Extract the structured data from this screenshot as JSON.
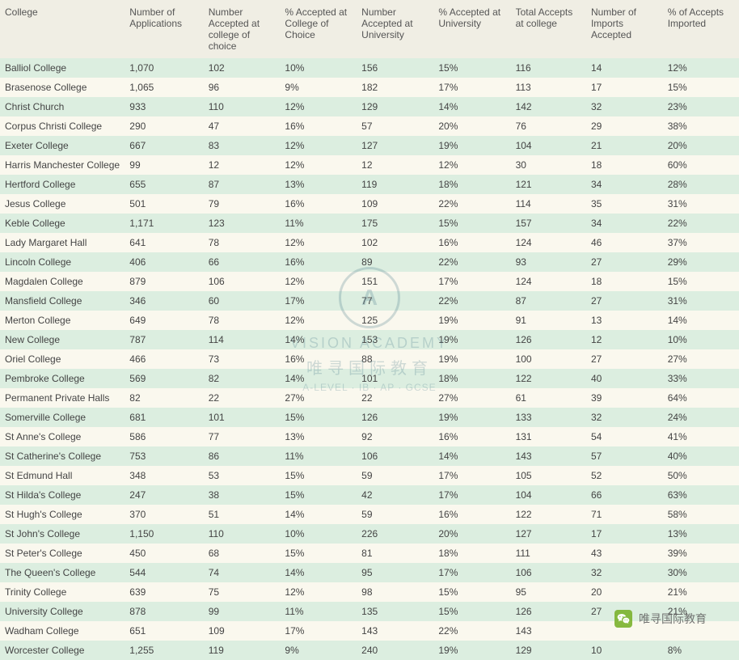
{
  "table": {
    "columns": [
      "College",
      "Number of Applications",
      "Number Accepted at college of choice",
      "% Accepted at College of Choice",
      "Number Accepted at University",
      "% Accepted at University",
      "Total Accepts at college",
      "Number of Imports Accepted",
      "% of Accepts Imported"
    ],
    "column_widths": [
      "160px",
      "90px",
      "90px",
      "90px",
      "90px",
      "90px",
      "90px",
      "90px",
      "90px"
    ],
    "row_odd_bg": "#dceee0",
    "row_even_bg": "#faf8ee",
    "header_bg": "#f0eee4",
    "font_size": 12,
    "text_color": "#444",
    "rows": [
      [
        "Balliol College",
        "1,070",
        "102",
        "10%",
        "156",
        "15%",
        "116",
        "14",
        "12%"
      ],
      [
        "Brasenose College",
        "1,065",
        "96",
        "9%",
        "182",
        "17%",
        "113",
        "17",
        "15%"
      ],
      [
        "Christ Church",
        "933",
        "110",
        "12%",
        "129",
        "14%",
        "142",
        "32",
        "23%"
      ],
      [
        "Corpus Christi College",
        "290",
        "47",
        "16%",
        "57",
        "20%",
        "76",
        "29",
        "38%"
      ],
      [
        "Exeter College",
        "667",
        "83",
        "12%",
        "127",
        "19%",
        "104",
        "21",
        "20%"
      ],
      [
        "Harris Manchester College",
        "99",
        "12",
        "12%",
        "12",
        "12%",
        "30",
        "18",
        "60%"
      ],
      [
        "Hertford College",
        "655",
        "87",
        "13%",
        "119",
        "18%",
        "121",
        "34",
        "28%"
      ],
      [
        "Jesus College",
        "501",
        "79",
        "16%",
        "109",
        "22%",
        "114",
        "35",
        "31%"
      ],
      [
        "Keble College",
        "1,171",
        "123",
        "11%",
        "175",
        "15%",
        "157",
        "34",
        "22%"
      ],
      [
        "Lady Margaret Hall",
        "641",
        "78",
        "12%",
        "102",
        "16%",
        "124",
        "46",
        "37%"
      ],
      [
        "Lincoln College",
        "406",
        "66",
        "16%",
        "89",
        "22%",
        "93",
        "27",
        "29%"
      ],
      [
        "Magdalen College",
        "879",
        "106",
        "12%",
        "151",
        "17%",
        "124",
        "18",
        "15%"
      ],
      [
        "Mansfield College",
        "346",
        "60",
        "17%",
        "77",
        "22%",
        "87",
        "27",
        "31%"
      ],
      [
        "Merton College",
        "649",
        "78",
        "12%",
        "125",
        "19%",
        "91",
        "13",
        "14%"
      ],
      [
        "New College",
        "787",
        "114",
        "14%",
        "153",
        "19%",
        "126",
        "12",
        "10%"
      ],
      [
        "Oriel College",
        "466",
        "73",
        "16%",
        "88",
        "19%",
        "100",
        "27",
        "27%"
      ],
      [
        "Pembroke College",
        "569",
        "82",
        "14%",
        "101",
        "18%",
        "122",
        "40",
        "33%"
      ],
      [
        "Permanent Private Halls",
        "82",
        "22",
        "27%",
        "22",
        "27%",
        "61",
        "39",
        "64%"
      ],
      [
        "Somerville College",
        "681",
        "101",
        "15%",
        "126",
        "19%",
        "133",
        "32",
        "24%"
      ],
      [
        "St Anne's College",
        "586",
        "77",
        "13%",
        "92",
        "16%",
        "131",
        "54",
        "41%"
      ],
      [
        "St Catherine's College",
        "753",
        "86",
        "11%",
        "106",
        "14%",
        "143",
        "57",
        "40%"
      ],
      [
        "St Edmund Hall",
        "348",
        "53",
        "15%",
        "59",
        "17%",
        "105",
        "52",
        "50%"
      ],
      [
        "St Hilda's College",
        "247",
        "38",
        "15%",
        "42",
        "17%",
        "104",
        "66",
        "63%"
      ],
      [
        "St Hugh's College",
        "370",
        "51",
        "14%",
        "59",
        "16%",
        "122",
        "71",
        "58%"
      ],
      [
        "St John's College",
        "1,150",
        "110",
        "10%",
        "226",
        "20%",
        "127",
        "17",
        "13%"
      ],
      [
        "St Peter's College",
        "450",
        "68",
        "15%",
        "81",
        "18%",
        "111",
        "43",
        "39%"
      ],
      [
        "The Queen's College",
        "544",
        "74",
        "14%",
        "95",
        "17%",
        "106",
        "32",
        "30%"
      ],
      [
        "Trinity College",
        "639",
        "75",
        "12%",
        "98",
        "15%",
        "95",
        "20",
        "21%"
      ],
      [
        "University College",
        "878",
        "99",
        "11%",
        "135",
        "15%",
        "126",
        "27",
        "21%"
      ],
      [
        "Wadham College",
        "651",
        "109",
        "17%",
        "143",
        "22%",
        "143",
        "",
        ""
      ],
      [
        "Worcester College",
        "1,255",
        "119",
        "9%",
        "240",
        "19%",
        "129",
        "10",
        "8%"
      ]
    ]
  },
  "watermark": {
    "logo_text": "A",
    "line1": "VISION ACADEMY",
    "line2": "唯寻国际教育",
    "line3": "A-LEVEL · IB · AP · GCSE",
    "color": "#4a7a8a",
    "opacity": 0.25
  },
  "bottom_watermark": {
    "text": "唯寻国际教育",
    "icon_bg": "#7bb32e"
  }
}
